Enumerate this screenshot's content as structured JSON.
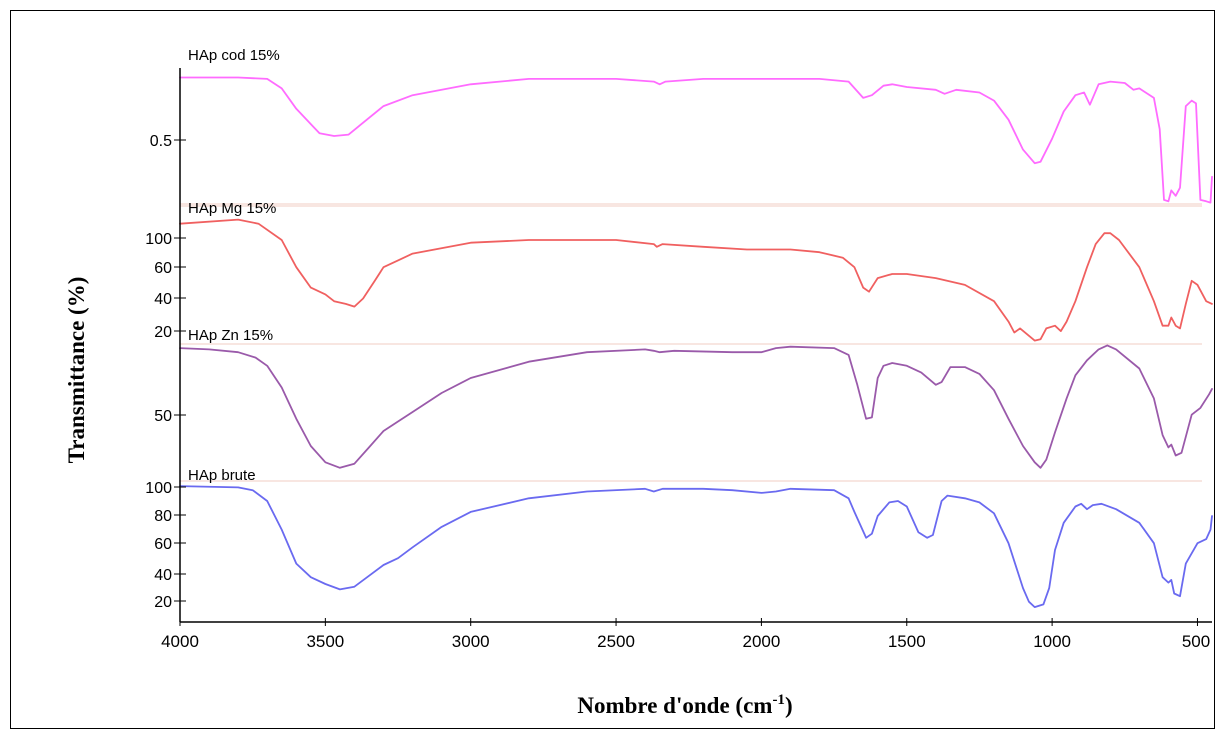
{
  "chart_data": {
    "type": "line",
    "title": "",
    "xlabel": "Nombre d'onde (cm",
    "xlabel_sup": "-1",
    "xlabel_close": ")",
    "ylabel": "Transmittance (%)",
    "xlim": [
      4000,
      450
    ],
    "x_reversed": true,
    "x_ticks": [
      4000,
      3500,
      3000,
      2500,
      2000,
      1500,
      1000,
      500
    ],
    "grid": false,
    "legend": "inline labels above each spectrum",
    "series": [
      {
        "name": "HAp cod 15%",
        "color": "#ff6bff",
        "y_ticks": [
          "0.5"
        ],
        "points": [
          [
            4000,
            93
          ],
          [
            3800,
            93
          ],
          [
            3700,
            92
          ],
          [
            3650,
            85
          ],
          [
            3600,
            70
          ],
          [
            3520,
            52
          ],
          [
            3470,
            50
          ],
          [
            3420,
            51
          ],
          [
            3380,
            58
          ],
          [
            3300,
            72
          ],
          [
            3200,
            80
          ],
          [
            3000,
            88
          ],
          [
            2800,
            92
          ],
          [
            2500,
            92
          ],
          [
            2370,
            90
          ],
          [
            2350,
            88
          ],
          [
            2330,
            90
          ],
          [
            2200,
            92
          ],
          [
            1800,
            92
          ],
          [
            1700,
            90
          ],
          [
            1650,
            78
          ],
          [
            1620,
            80
          ],
          [
            1580,
            87
          ],
          [
            1550,
            88
          ],
          [
            1500,
            86
          ],
          [
            1400,
            84
          ],
          [
            1370,
            81
          ],
          [
            1330,
            84
          ],
          [
            1250,
            82
          ],
          [
            1200,
            76
          ],
          [
            1150,
            62
          ],
          [
            1100,
            40
          ],
          [
            1060,
            30
          ],
          [
            1040,
            31
          ],
          [
            1000,
            48
          ],
          [
            960,
            68
          ],
          [
            920,
            80
          ],
          [
            890,
            82
          ],
          [
            870,
            73
          ],
          [
            840,
            88
          ],
          [
            800,
            90
          ],
          [
            750,
            89
          ],
          [
            720,
            84
          ],
          [
            700,
            85
          ],
          [
            650,
            78
          ],
          [
            630,
            55
          ],
          [
            615,
            3
          ],
          [
            600,
            2
          ],
          [
            590,
            10
          ],
          [
            575,
            6
          ],
          [
            560,
            12
          ],
          [
            540,
            72
          ],
          [
            520,
            76
          ],
          [
            505,
            74
          ],
          [
            490,
            3
          ],
          [
            470,
            2
          ],
          [
            455,
            1
          ],
          [
            450,
            20
          ]
        ]
      },
      {
        "name": "HAp Mg 15%",
        "color": "#f06060",
        "y_ticks": [
          "100",
          "60",
          "40",
          "20"
        ],
        "points": [
          [
            4000,
            87
          ],
          [
            3800,
            90
          ],
          [
            3730,
            87
          ],
          [
            3650,
            75
          ],
          [
            3600,
            55
          ],
          [
            3550,
            40
          ],
          [
            3500,
            35
          ],
          [
            3470,
            30
          ],
          [
            3430,
            28
          ],
          [
            3400,
            26
          ],
          [
            3370,
            32
          ],
          [
            3330,
            45
          ],
          [
            3300,
            55
          ],
          [
            3250,
            60
          ],
          [
            3200,
            65
          ],
          [
            3000,
            73
          ],
          [
            2800,
            75
          ],
          [
            2500,
            75
          ],
          [
            2370,
            72
          ],
          [
            2360,
            70
          ],
          [
            2340,
            72
          ],
          [
            2200,
            70
          ],
          [
            2050,
            68
          ],
          [
            1900,
            68
          ],
          [
            1800,
            66
          ],
          [
            1720,
            62
          ],
          [
            1680,
            55
          ],
          [
            1650,
            40
          ],
          [
            1630,
            37
          ],
          [
            1600,
            47
          ],
          [
            1550,
            50
          ],
          [
            1500,
            50
          ],
          [
            1400,
            47
          ],
          [
            1300,
            42
          ],
          [
            1200,
            30
          ],
          [
            1150,
            15
          ],
          [
            1130,
            7
          ],
          [
            1110,
            10
          ],
          [
            1060,
            1
          ],
          [
            1040,
            2
          ],
          [
            1020,
            10
          ],
          [
            990,
            12
          ],
          [
            970,
            8
          ],
          [
            950,
            15
          ],
          [
            920,
            30
          ],
          [
            880,
            55
          ],
          [
            850,
            72
          ],
          [
            820,
            80
          ],
          [
            800,
            80
          ],
          [
            770,
            75
          ],
          [
            700,
            55
          ],
          [
            650,
            30
          ],
          [
            620,
            12
          ],
          [
            600,
            12
          ],
          [
            590,
            18
          ],
          [
            575,
            12
          ],
          [
            560,
            10
          ],
          [
            540,
            28
          ],
          [
            520,
            45
          ],
          [
            500,
            42
          ],
          [
            470,
            30
          ],
          [
            450,
            28
          ]
        ]
      },
      {
        "name": "HAp Zn 15%",
        "color": "#9a5aaa",
        "y_ticks": [
          "50"
        ],
        "points": [
          [
            4000,
            97
          ],
          [
            3900,
            96
          ],
          [
            3800,
            94
          ],
          [
            3740,
            90
          ],
          [
            3700,
            84
          ],
          [
            3650,
            68
          ],
          [
            3600,
            45
          ],
          [
            3550,
            25
          ],
          [
            3500,
            13
          ],
          [
            3450,
            9
          ],
          [
            3400,
            12
          ],
          [
            3350,
            24
          ],
          [
            3300,
            36
          ],
          [
            3250,
            43
          ],
          [
            3200,
            50
          ],
          [
            3100,
            64
          ],
          [
            3000,
            75
          ],
          [
            2800,
            87
          ],
          [
            2600,
            94
          ],
          [
            2400,
            96
          ],
          [
            2370,
            95
          ],
          [
            2350,
            94
          ],
          [
            2300,
            95
          ],
          [
            2100,
            94
          ],
          [
            2000,
            94
          ],
          [
            1950,
            97
          ],
          [
            1900,
            98
          ],
          [
            1750,
            97
          ],
          [
            1700,
            92
          ],
          [
            1670,
            70
          ],
          [
            1640,
            45
          ],
          [
            1620,
            46
          ],
          [
            1600,
            75
          ],
          [
            1580,
            84
          ],
          [
            1550,
            86
          ],
          [
            1500,
            84
          ],
          [
            1450,
            79
          ],
          [
            1400,
            70
          ],
          [
            1380,
            72
          ],
          [
            1350,
            83
          ],
          [
            1300,
            83
          ],
          [
            1250,
            78
          ],
          [
            1200,
            66
          ],
          [
            1150,
            45
          ],
          [
            1100,
            25
          ],
          [
            1060,
            13
          ],
          [
            1040,
            9
          ],
          [
            1020,
            15
          ],
          [
            990,
            35
          ],
          [
            950,
            60
          ],
          [
            920,
            77
          ],
          [
            880,
            88
          ],
          [
            840,
            96
          ],
          [
            810,
            99
          ],
          [
            780,
            96
          ],
          [
            700,
            82
          ],
          [
            650,
            60
          ],
          [
            620,
            33
          ],
          [
            600,
            24
          ],
          [
            590,
            26
          ],
          [
            575,
            18
          ],
          [
            555,
            20
          ],
          [
            520,
            48
          ],
          [
            490,
            53
          ],
          [
            460,
            63
          ],
          [
            450,
            67
          ]
        ]
      },
      {
        "name": "HAp brute",
        "color": "#6a6af0",
        "y_ticks": [
          "100",
          "80",
          "60",
          "40",
          "20"
        ],
        "points": [
          [
            4000,
            97
          ],
          [
            3800,
            96
          ],
          [
            3750,
            94
          ],
          [
            3700,
            86
          ],
          [
            3650,
            65
          ],
          [
            3600,
            40
          ],
          [
            3550,
            30
          ],
          [
            3500,
            25
          ],
          [
            3450,
            21
          ],
          [
            3400,
            23
          ],
          [
            3350,
            31
          ],
          [
            3300,
            39
          ],
          [
            3250,
            44
          ],
          [
            3200,
            52
          ],
          [
            3100,
            67
          ],
          [
            3000,
            78
          ],
          [
            2800,
            88
          ],
          [
            2600,
            93
          ],
          [
            2400,
            95
          ],
          [
            2370,
            93
          ],
          [
            2340,
            95
          ],
          [
            2200,
            95
          ],
          [
            2100,
            94
          ],
          [
            2000,
            92
          ],
          [
            1950,
            93
          ],
          [
            1900,
            95
          ],
          [
            1750,
            94
          ],
          [
            1700,
            88
          ],
          [
            1680,
            78
          ],
          [
            1640,
            59
          ],
          [
            1620,
            62
          ],
          [
            1600,
            75
          ],
          [
            1560,
            85
          ],
          [
            1530,
            86
          ],
          [
            1500,
            82
          ],
          [
            1460,
            63
          ],
          [
            1430,
            59
          ],
          [
            1410,
            61
          ],
          [
            1380,
            86
          ],
          [
            1360,
            90
          ],
          [
            1300,
            88
          ],
          [
            1250,
            85
          ],
          [
            1200,
            77
          ],
          [
            1150,
            55
          ],
          [
            1100,
            22
          ],
          [
            1080,
            12
          ],
          [
            1060,
            8
          ],
          [
            1030,
            10
          ],
          [
            1010,
            22
          ],
          [
            990,
            50
          ],
          [
            960,
            70
          ],
          [
            920,
            82
          ],
          [
            900,
            84
          ],
          [
            880,
            80
          ],
          [
            860,
            83
          ],
          [
            830,
            84
          ],
          [
            780,
            80
          ],
          [
            700,
            70
          ],
          [
            650,
            55
          ],
          [
            620,
            30
          ],
          [
            600,
            26
          ],
          [
            590,
            28
          ],
          [
            580,
            18
          ],
          [
            560,
            16
          ],
          [
            540,
            40
          ],
          [
            500,
            55
          ],
          [
            470,
            58
          ],
          [
            455,
            65
          ],
          [
            450,
            75
          ]
        ]
      }
    ]
  }
}
